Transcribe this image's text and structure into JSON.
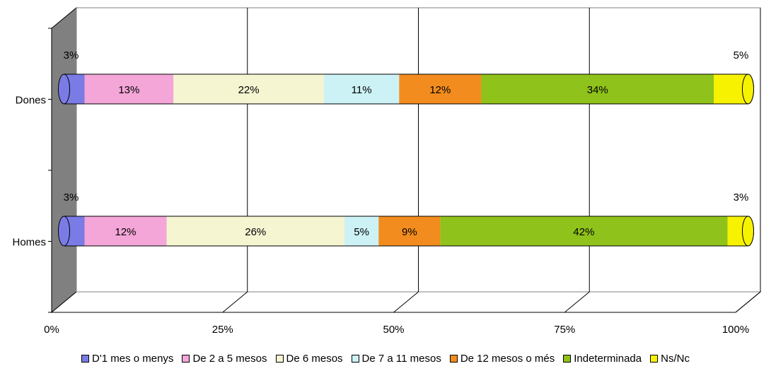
{
  "chart_data": {
    "type": "bar",
    "orientation": "horizontal",
    "stacked": "percent",
    "categories": [
      "Dones",
      "Homes"
    ],
    "series": [
      {
        "name": "D'1 mes o menys",
        "color": "#7b7be6",
        "values": [
          3,
          3
        ],
        "labels": [
          "3%",
          "3%"
        ]
      },
      {
        "name": "De 2 a 5 mesos",
        "color": "#f4a6d8",
        "values": [
          13,
          12
        ],
        "labels": [
          "13%",
          "12%"
        ]
      },
      {
        "name": "De 6 mesos",
        "color": "#f5f5d2",
        "values": [
          22,
          26
        ],
        "labels": [
          "22%",
          "26%"
        ]
      },
      {
        "name": "De 7 a 11 mesos",
        "color": "#ccf2f5",
        "values": [
          11,
          5
        ],
        "labels": [
          "11%",
          "5%"
        ]
      },
      {
        "name": "De 12 mesos o més",
        "color": "#f28c1e",
        "values": [
          12,
          9
        ],
        "labels": [
          "12%",
          "9%"
        ]
      },
      {
        "name": "Indeterminada",
        "color": "#8fc21a",
        "values": [
          34,
          42
        ],
        "labels": [
          "34%",
          "42%"
        ]
      },
      {
        "name": "Ns/Nc",
        "color": "#f7f200",
        "values": [
          5,
          3
        ],
        "labels": [
          "5%",
          "3%"
        ]
      }
    ],
    "xlim": [
      0,
      100
    ],
    "xticks": [
      "0%",
      "25%",
      "50%",
      "75%",
      "100%"
    ],
    "grid": true,
    "legend": "bottom"
  }
}
